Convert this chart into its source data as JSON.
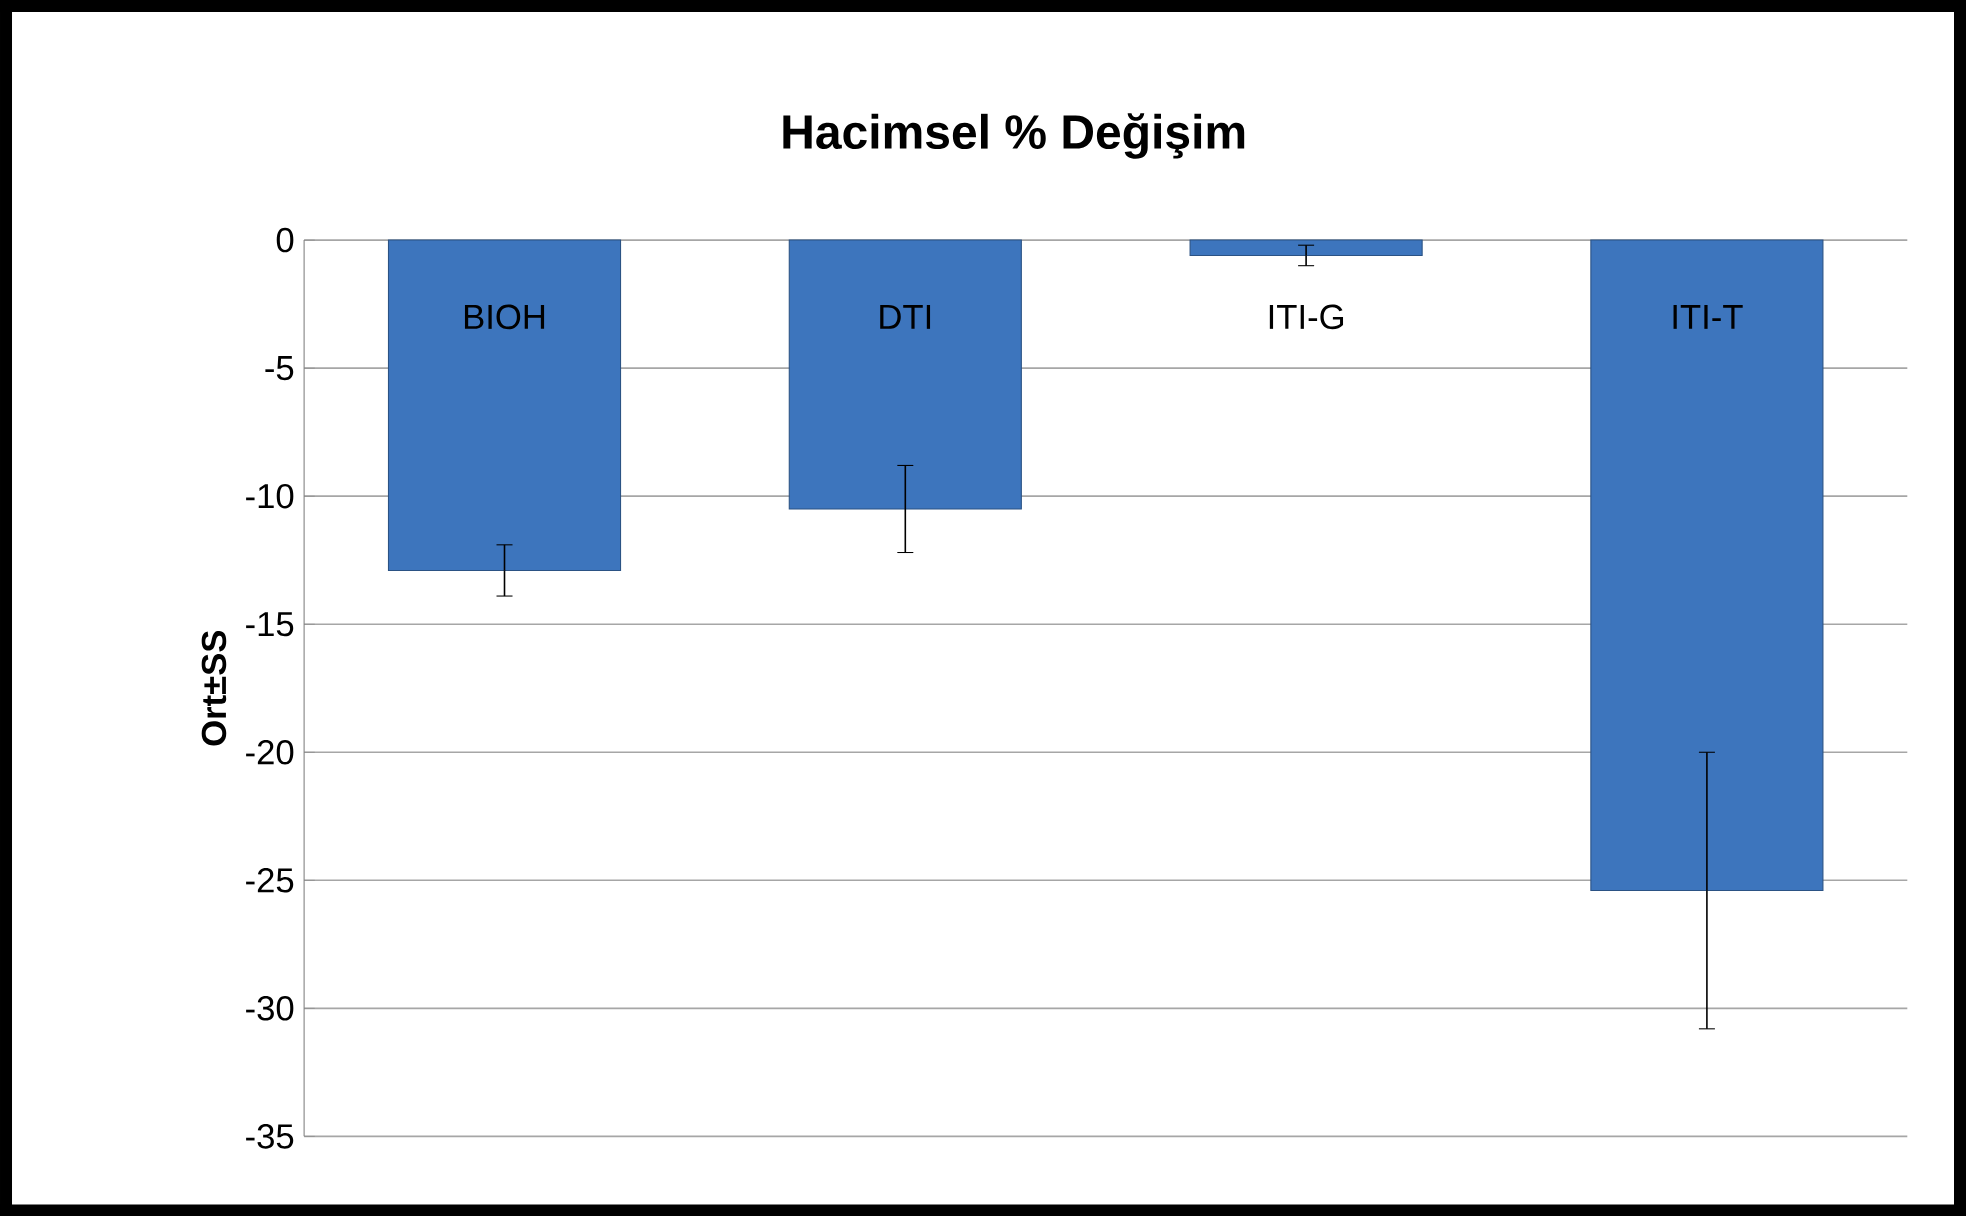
{
  "chart_data": {
    "type": "bar",
    "title": "Hacimsel % Değişim",
    "ylabel": "Ort±SS",
    "categories": [
      "BIOH",
      "DTI",
      "ITI-G",
      "ITI-T"
    ],
    "values": [
      -12.9,
      -10.5,
      -0.6,
      -25.4
    ],
    "errors": [
      1.0,
      1.7,
      0.4,
      5.4
    ],
    "color": "#3d75bd",
    "ylim": [
      -35,
      0
    ],
    "yticks": [
      -35,
      -30,
      -25,
      -20,
      -15,
      -10,
      -5,
      0
    ],
    "grid": "y"
  }
}
